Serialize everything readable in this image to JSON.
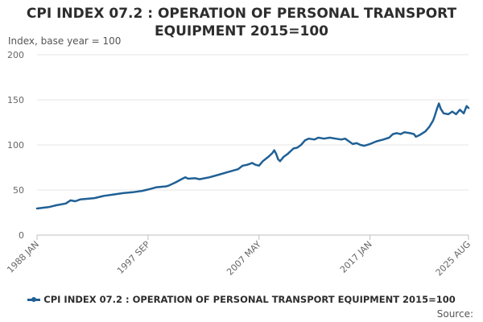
{
  "chart_data": {
    "type": "line",
    "title": "CPI INDEX 07.2 : OPERATION OF PERSONAL TRANSPORT EQUIPMENT 2015=100",
    "ylabel": "Index, base year = 100",
    "ylim": [
      0,
      200
    ],
    "yticks": [
      "0",
      "50",
      "100",
      "150",
      "200"
    ],
    "x_range": [
      0,
      451
    ],
    "xticks": [
      {
        "label": "1988 JAN",
        "index": 0
      },
      {
        "label": "1997 SEP",
        "index": 116
      },
      {
        "label": "2007 MAY",
        "index": 232
      },
      {
        "label": "2017 JAN",
        "index": 348
      },
      {
        "label": "2025 AUG",
        "index": 451
      }
    ],
    "grid": true,
    "legend_position": "bottom",
    "source_label": "Source:",
    "series": [
      {
        "name": "CPI INDEX 07.2 : OPERATION OF PERSONAL TRANSPORT EQUIPMENT 2015=100",
        "color": "#206095",
        "anchors": [
          [
            0,
            29.5
          ],
          [
            12,
            31
          ],
          [
            20,
            33
          ],
          [
            30,
            35
          ],
          [
            35,
            38.5
          ],
          [
            40,
            37.5
          ],
          [
            45,
            39.5
          ],
          [
            60,
            41
          ],
          [
            70,
            43.5
          ],
          [
            80,
            45
          ],
          [
            90,
            46.5
          ],
          [
            100,
            47.5
          ],
          [
            110,
            49
          ],
          [
            116,
            50.5
          ],
          [
            125,
            53
          ],
          [
            135,
            54
          ],
          [
            138,
            55
          ],
          [
            145,
            58.5
          ],
          [
            152,
            62.5
          ],
          [
            155,
            64
          ],
          [
            158,
            62.5
          ],
          [
            165,
            63
          ],
          [
            170,
            62
          ],
          [
            180,
            64
          ],
          [
            190,
            67
          ],
          [
            200,
            70
          ],
          [
            210,
            73
          ],
          [
            215,
            77
          ],
          [
            220,
            78
          ],
          [
            225,
            80
          ],
          [
            228,
            78
          ],
          [
            232,
            77
          ],
          [
            236,
            82
          ],
          [
            242,
            87
          ],
          [
            246,
            91
          ],
          [
            248,
            94
          ],
          [
            250,
            90
          ],
          [
            252,
            84
          ],
          [
            254,
            82
          ],
          [
            258,
            87
          ],
          [
            262,
            90
          ],
          [
            268,
            96
          ],
          [
            272,
            97
          ],
          [
            276,
            100
          ],
          [
            280,
            105
          ],
          [
            284,
            107
          ],
          [
            290,
            106
          ],
          [
            294,
            108
          ],
          [
            300,
            107
          ],
          [
            306,
            108
          ],
          [
            312,
            107
          ],
          [
            318,
            106
          ],
          [
            322,
            107
          ],
          [
            326,
            104
          ],
          [
            330,
            101
          ],
          [
            334,
            102
          ],
          [
            338,
            100
          ],
          [
            342,
            99
          ],
          [
            348,
            101
          ],
          [
            355,
            104
          ],
          [
            362,
            106
          ],
          [
            368,
            108
          ],
          [
            372,
            112
          ],
          [
            376,
            113
          ],
          [
            380,
            112
          ],
          [
            384,
            114
          ],
          [
            390,
            113
          ],
          [
            394,
            112
          ],
          [
            396,
            109
          ],
          [
            400,
            111
          ],
          [
            406,
            115
          ],
          [
            410,
            120
          ],
          [
            414,
            127
          ],
          [
            416,
            133
          ],
          [
            418,
            140
          ],
          [
            420,
            146
          ],
          [
            422,
            140
          ],
          [
            425,
            135
          ],
          [
            430,
            134
          ],
          [
            434,
            137
          ],
          [
            438,
            134
          ],
          [
            442,
            139
          ],
          [
            446,
            135
          ],
          [
            449,
            143
          ],
          [
            451,
            141
          ]
        ]
      }
    ]
  }
}
